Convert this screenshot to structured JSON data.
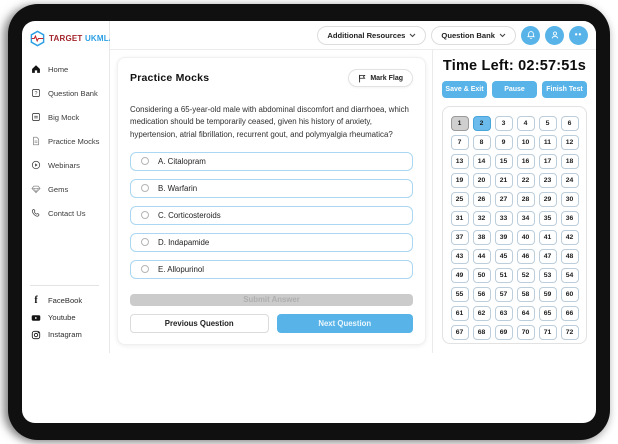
{
  "logo": {
    "target": "TARGET",
    "ukmla": "UKMLA"
  },
  "topbar": {
    "additional_resources_label": "Additional Resources",
    "question_bank_label": "Question Bank"
  },
  "sidebar": {
    "items": [
      {
        "label": "Home",
        "icon": "home-icon"
      },
      {
        "label": "Question Bank",
        "icon": "question-bank-icon"
      },
      {
        "label": "Big Mock",
        "icon": "big-mock-icon"
      },
      {
        "label": "Practice Mocks",
        "icon": "practice-mocks-icon"
      },
      {
        "label": "Webinars",
        "icon": "webinars-icon"
      },
      {
        "label": "Gems",
        "icon": "gems-icon"
      },
      {
        "label": "Contact Us",
        "icon": "contact-us-icon"
      }
    ],
    "social": [
      {
        "label": "FaceBook",
        "icon": "facebook-icon"
      },
      {
        "label": "Youtube",
        "icon": "youtube-icon"
      },
      {
        "label": "Instagram",
        "icon": "instagram-icon"
      }
    ]
  },
  "question_panel": {
    "title": "Practice Mocks",
    "mark_flag_label": "Mark Flag",
    "question_text": "Considering a 65-year-old male with abdominal discomfort and diarrhoea, which medication should be temporarily ceased, given his history of anxiety, hypertension, atrial fibrillation, recurrent gout, and polymyalgia rheumatica?",
    "options": [
      {
        "label": "A. Citalopram"
      },
      {
        "label": "B. Warfarin"
      },
      {
        "label": "C. Corticosteroids"
      },
      {
        "label": "D. Indapamide"
      },
      {
        "label": "E. Allopurinol"
      }
    ],
    "submit_label": "Submit Answer",
    "previous_label": "Previous Question",
    "next_label": "Next Question"
  },
  "timer_panel": {
    "time_left": "Time Left: 02:57:51s",
    "save_exit_label": "Save & Exit",
    "pause_label": "Pause",
    "finish_label": "Finish Test",
    "total_questions": 78,
    "current_question": 2,
    "visited_questions": [
      1
    ],
    "cell_numbers": [
      1,
      2,
      3,
      4,
      5,
      6,
      7,
      8,
      9,
      10,
      11,
      12,
      13,
      14,
      15,
      16,
      17,
      18,
      19,
      20,
      21,
      22,
      23,
      24,
      25,
      26,
      27,
      28,
      29,
      30,
      31,
      32,
      33,
      34,
      35,
      36,
      37,
      38,
      39,
      40,
      41,
      42,
      43,
      44,
      45,
      46,
      47,
      48,
      49,
      50,
      51,
      52,
      53,
      54,
      55,
      56,
      57,
      58,
      59,
      60,
      61,
      62,
      63,
      64,
      65,
      66,
      67,
      68,
      69,
      70,
      71,
      72,
      73,
      74,
      75,
      76,
      77,
      78
    ]
  },
  "colors": {
    "accent_blue": "#58b4e8",
    "current_cell_blue": "#6bbcec",
    "visited_cell_gray": "#cfcfcf",
    "option_border_blue": "#abd7f2",
    "disabled_gray": "#cbcbcb",
    "logo_red": "#a3242b",
    "logo_blue": "#2b9fe3",
    "bezel_black": "#101010"
  }
}
